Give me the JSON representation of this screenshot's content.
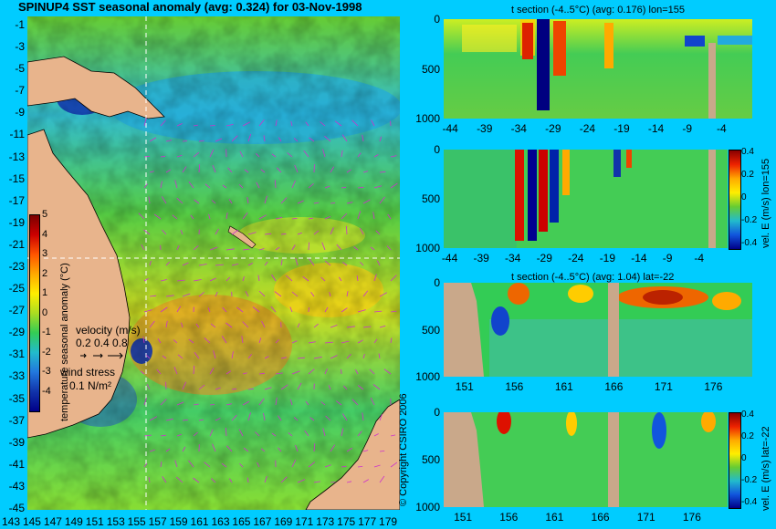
{
  "page_title": "SPINUP4 SST seasonal anomaly  (avg: 0.324) for 03-Nov-1998",
  "map": {
    "lat_labels": [
      "-1",
      "-3",
      "-5",
      "-7",
      "-9",
      "-11",
      "-13",
      "-15",
      "-17",
      "-19",
      "-21",
      "-23",
      "-25",
      "-27",
      "-29",
      "-31",
      "-33",
      "-35",
      "-37",
      "-39",
      "-41",
      "-43",
      "-45"
    ],
    "lon_labels": [
      "143",
      "145",
      "147",
      "149",
      "151",
      "153",
      "155",
      "157",
      "159",
      "161",
      "163",
      "165",
      "167",
      "169",
      "171",
      "173",
      "175",
      "177",
      "179"
    ],
    "colorbar_label": "temperature seasonal anomaly (°C)",
    "colorbar_ticks": [
      "5",
      "4",
      "3",
      "2",
      "1",
      "0",
      "-1",
      "-2",
      "-3",
      "-4"
    ],
    "velocity_legend_title": "velocity (m/s)",
    "velocity_legend_values": "0.2 0.4 0.8",
    "wind_legend_title": "wind stress",
    "wind_legend_value": "0.1 N/m²",
    "copyright": "© Copyright CSIRO 2006"
  },
  "colors": {
    "background": "#00ccff",
    "land": "#e8b48c",
    "section_land": "#c9a88a",
    "velocity_arrows": "#cc33cc"
  },
  "chart_data": [
    {
      "id": "t_section_lon155",
      "type": "heatmap",
      "title": "t section (-4..5°C) (avg: 0.176) lon=155",
      "x_ticks": [
        "-44",
        "-39",
        "-34",
        "-29",
        "-24",
        "-19",
        "-14",
        "-9",
        "-4"
      ],
      "y_ticks": [
        "0",
        "500",
        "1000"
      ],
      "xlim": [
        -45,
        0
      ],
      "ylim": [
        1000,
        0
      ],
      "colorbar": null
    },
    {
      "id": "vel_e_lon155",
      "type": "heatmap",
      "title": "",
      "x_ticks": [
        "-44",
        "-39",
        "-34",
        "-29",
        "-24",
        "-19",
        "-14",
        "-9",
        "-4"
      ],
      "y_ticks": [
        "0",
        "500",
        "1000"
      ],
      "xlim": [
        -45,
        0
      ],
      "ylim": [
        1000,
        0
      ],
      "colorbar": {
        "label": "vel. E (m/s) lon=155",
        "ticks": [
          "0.4",
          "0.2",
          "0",
          "-0.2",
          "-0.4"
        ]
      }
    },
    {
      "id": "t_section_lat22",
      "type": "heatmap",
      "title": "t section (-4..5°C) (avg: 1.04) lat=-22",
      "x_ticks": [
        "151",
        "156",
        "161",
        "166",
        "171",
        "176"
      ],
      "y_ticks": [
        "0",
        "500",
        "1000"
      ],
      "xlim": [
        149,
        180
      ],
      "ylim": [
        1000,
        0
      ],
      "colorbar": null
    },
    {
      "id": "vel_e_lat22",
      "type": "heatmap",
      "title": "",
      "x_ticks": [
        "151",
        "156",
        "161",
        "166",
        "171",
        "176"
      ],
      "y_ticks": [
        "0",
        "500",
        "1000"
      ],
      "xlim": [
        149,
        180
      ],
      "ylim": [
        1000,
        0
      ],
      "colorbar": {
        "label": "vel. E (m/s) lat=-22",
        "ticks": [
          "0.4",
          "0.2",
          "0",
          "-0.2",
          "-0.4"
        ]
      }
    }
  ]
}
